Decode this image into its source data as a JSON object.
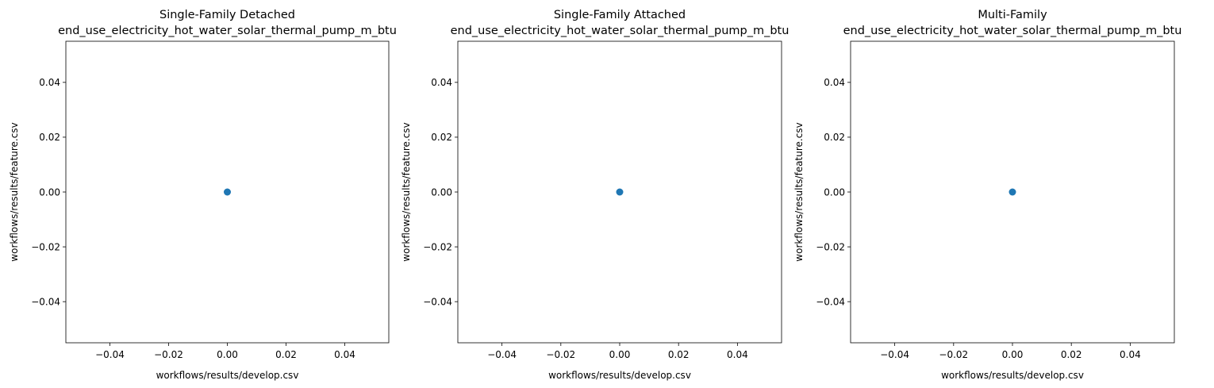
{
  "chart_data": [
    {
      "type": "scatter",
      "title": "Single-Family Detached\nend_use_electricity_hot_water_solar_thermal_pump_m_btu",
      "xlabel": "workflows/results/develop.csv",
      "ylabel": "workflows/results/feature.csv",
      "xlim": [
        -0.055,
        0.055
      ],
      "ylim": [
        -0.055,
        0.055
      ],
      "xticks": [
        -0.04,
        -0.02,
        0.0,
        0.02,
        0.04
      ],
      "yticks": [
        -0.04,
        -0.02,
        0.0,
        0.02,
        0.04
      ],
      "xtick_labels": [
        "−0.04",
        "−0.02",
        "0.00",
        "0.02",
        "0.04"
      ],
      "ytick_labels": [
        "−0.04",
        "−0.02",
        "0.00",
        "0.02",
        "0.04"
      ],
      "grid": false,
      "points": [
        {
          "x": 0.0,
          "y": 0.0
        }
      ]
    },
    {
      "type": "scatter",
      "title": "Single-Family Attached\nend_use_electricity_hot_water_solar_thermal_pump_m_btu",
      "xlabel": "workflows/results/develop.csv",
      "ylabel": "workflows/results/feature.csv",
      "xlim": [
        -0.055,
        0.055
      ],
      "ylim": [
        -0.055,
        0.055
      ],
      "xticks": [
        -0.04,
        -0.02,
        0.0,
        0.02,
        0.04
      ],
      "yticks": [
        -0.04,
        -0.02,
        0.0,
        0.02,
        0.04
      ],
      "xtick_labels": [
        "−0.04",
        "−0.02",
        "0.00",
        "0.02",
        "0.04"
      ],
      "ytick_labels": [
        "−0.04",
        "−0.02",
        "0.00",
        "0.02",
        "0.04"
      ],
      "grid": false,
      "points": [
        {
          "x": 0.0,
          "y": 0.0
        }
      ]
    },
    {
      "type": "scatter",
      "title": "Multi-Family\nend_use_electricity_hot_water_solar_thermal_pump_m_btu",
      "xlabel": "workflows/results/develop.csv",
      "ylabel": "workflows/results/feature.csv",
      "xlim": [
        -0.055,
        0.055
      ],
      "ylim": [
        -0.055,
        0.055
      ],
      "xticks": [
        -0.04,
        -0.02,
        0.0,
        0.02,
        0.04
      ],
      "yticks": [
        -0.04,
        -0.02,
        0.0,
        0.02,
        0.04
      ],
      "xtick_labels": [
        "−0.04",
        "−0.02",
        "0.00",
        "0.02",
        "0.04"
      ],
      "ytick_labels": [
        "−0.04",
        "−0.02",
        "0.00",
        "0.02",
        "0.04"
      ],
      "grid": false,
      "points": [
        {
          "x": 0.0,
          "y": 0.0
        }
      ]
    }
  ],
  "colors": {
    "marker": "#1f77b4",
    "axes": "#000000",
    "background": "#ffffff"
  }
}
